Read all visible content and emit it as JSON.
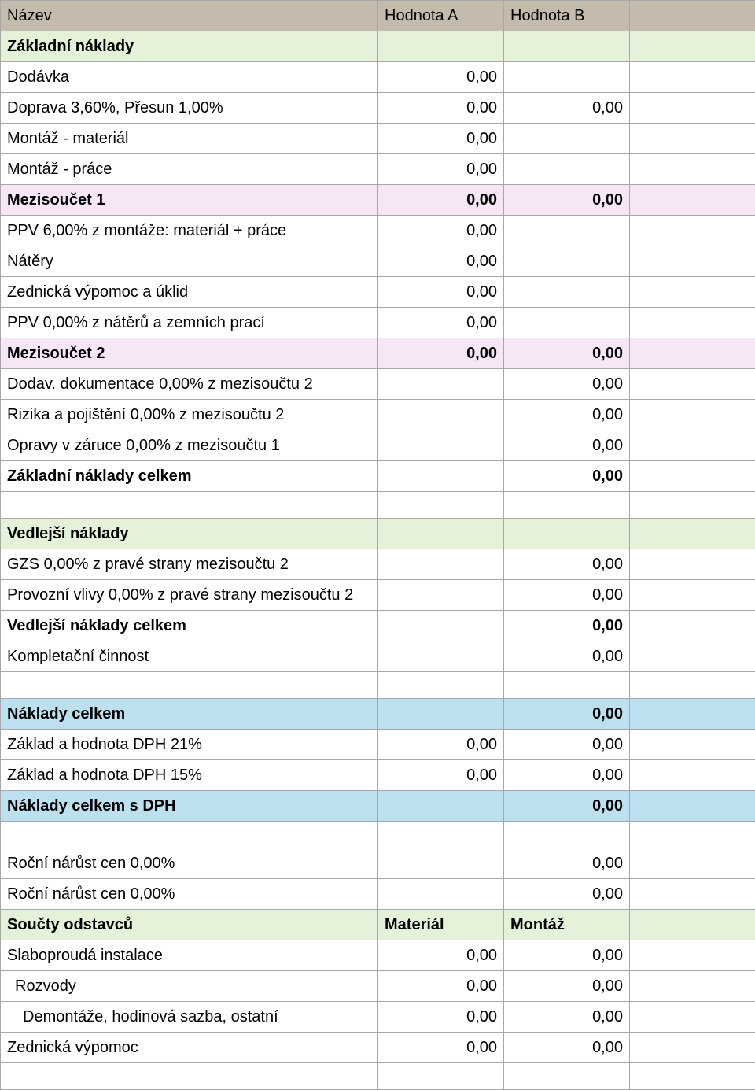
{
  "colors": {
    "header_bg": "#c4bbac",
    "green_bg": "#e4f2da",
    "pink_bg": "#f6e6f6",
    "blue_bg": "#bde0ee",
    "border": "#a7a7a7",
    "text": "#000000"
  },
  "header": {
    "name": "Název",
    "col_a": "Hodnota A",
    "col_b": "Hodnota B"
  },
  "rows": [
    {
      "type": "section",
      "style": "green",
      "name": "Základní náklady"
    },
    {
      "type": "data",
      "name": "Dodávka",
      "a": "0,00"
    },
    {
      "type": "data",
      "name": "Doprava 3,60%, Přesun 1,00%",
      "a": "0,00",
      "b": "0,00"
    },
    {
      "type": "data",
      "name": "Montáž - materiál",
      "a": "0,00"
    },
    {
      "type": "data",
      "name": "Montáž - práce",
      "a": "0,00"
    },
    {
      "type": "subtotal",
      "style": "pink",
      "name": "Mezisoučet 1",
      "a": "0,00",
      "b": "0,00"
    },
    {
      "type": "data",
      "name": "PPV 6,00% z montáže: materiál + práce",
      "a": "0,00"
    },
    {
      "type": "data",
      "name": "Nátěry",
      "a": "0,00"
    },
    {
      "type": "data",
      "name": "Zednická výpomoc a úklid",
      "a": "0,00"
    },
    {
      "type": "data",
      "name": "PPV 0,00% z nátěrů a zemních prací",
      "a": "0,00"
    },
    {
      "type": "subtotal",
      "style": "pink",
      "name": "Mezisoučet 2",
      "a": "0,00",
      "b": "0,00"
    },
    {
      "type": "data",
      "name": "Dodav. dokumentace 0,00% z mezisoučtu 2",
      "b": "0,00"
    },
    {
      "type": "data",
      "name": "Rizika a pojištění 0,00% z mezisoučtu 2",
      "b": "0,00"
    },
    {
      "type": "data",
      "name": "Opravy v záruce 0,00% z mezisoučtu 1",
      "b": "0,00"
    },
    {
      "type": "total",
      "style": "bold",
      "name": "Základní náklady celkem",
      "b": "0,00"
    },
    {
      "type": "spacer"
    },
    {
      "type": "section",
      "style": "green",
      "name": "Vedlejší náklady"
    },
    {
      "type": "data",
      "name": "GZS 0,00% z pravé strany mezisoučtu 2",
      "b": "0,00"
    },
    {
      "type": "data",
      "name": "Provozní vlivy 0,00% z pravé strany mezisoučtu 2",
      "b": "0,00"
    },
    {
      "type": "total",
      "style": "bold",
      "name": "Vedlejší náklady celkem",
      "b": "0,00"
    },
    {
      "type": "data",
      "name": "Kompletační činnost",
      "b": "0,00"
    },
    {
      "type": "spacer"
    },
    {
      "type": "grand",
      "style": "blue",
      "name": "Náklady celkem",
      "b": "0,00"
    },
    {
      "type": "data",
      "name": "Základ a hodnota DPH 21%",
      "a": "0,00",
      "b": "0,00"
    },
    {
      "type": "data",
      "name": "Základ a hodnota DPH 15%",
      "a": "0,00",
      "b": "0,00"
    },
    {
      "type": "grand",
      "style": "blue",
      "name": "Náklady celkem s DPH",
      "b": "0,00"
    },
    {
      "type": "spacer"
    },
    {
      "type": "data",
      "name": "Roční nárůst cen 0,00%",
      "b": "0,00"
    },
    {
      "type": "data",
      "name": "Roční nárůst cen 0,00%",
      "b": "0,00"
    },
    {
      "type": "labels",
      "style": "green",
      "name": "Součty odstavců",
      "a": "Materiál",
      "b": "Montáž"
    },
    {
      "type": "data",
      "name": "Slaboproudá instalace",
      "a": "0,00",
      "b": "0,00"
    },
    {
      "type": "data",
      "indent": 1,
      "name": "Rozvody",
      "a": "0,00",
      "b": "0,00"
    },
    {
      "type": "data",
      "indent": 2,
      "name": "Demontáže, hodinová sazba, ostatní",
      "a": "0,00",
      "b": "0,00"
    },
    {
      "type": "data",
      "name": "Zednická výpomoc",
      "a": "0,00",
      "b": "0,00"
    },
    {
      "type": "spacer"
    }
  ]
}
